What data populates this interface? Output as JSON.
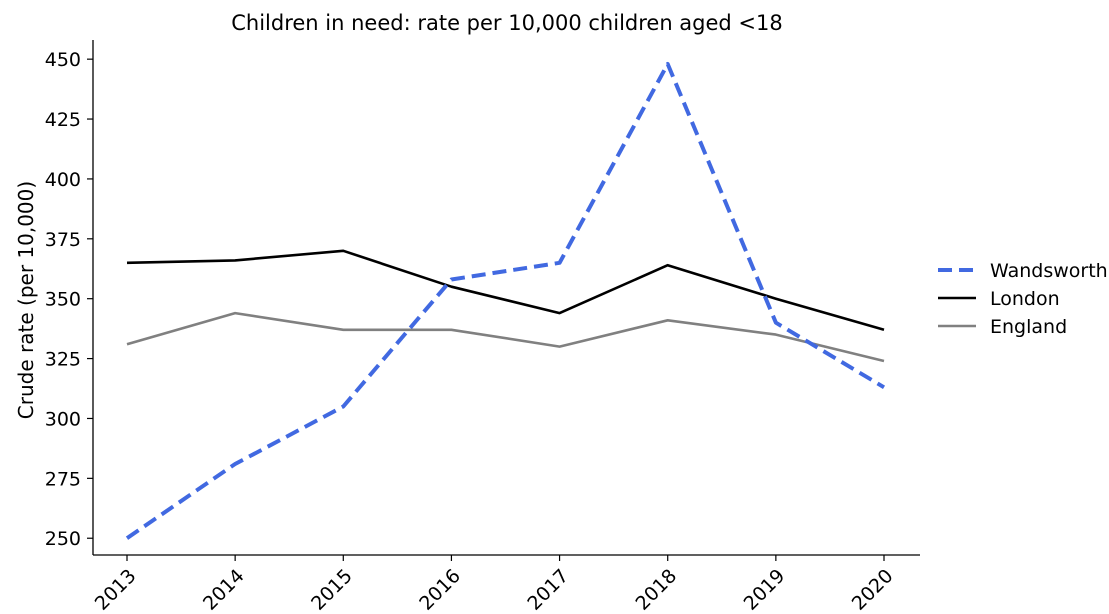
{
  "chart_data": {
    "type": "line",
    "title": "Children in need: rate per 10,000 children aged <18",
    "xlabel": "",
    "ylabel": "Crude rate (per 10,000)",
    "categories": [
      "2013",
      "2014",
      "2015",
      "2016",
      "2017",
      "2018",
      "2019",
      "2020"
    ],
    "yticks": [
      250,
      275,
      300,
      325,
      350,
      375,
      400,
      425,
      450
    ],
    "ylim": [
      243,
      458
    ],
    "grid": false,
    "legend_position": "right",
    "series": [
      {
        "name": "Wandsworth",
        "color": "#4169E1",
        "style": "dashed",
        "values": [
          250,
          281,
          305,
          358,
          365,
          448,
          340,
          313
        ]
      },
      {
        "name": "London",
        "color": "#000000",
        "style": "solid",
        "values": [
          365,
          366,
          370,
          355,
          344,
          364,
          350,
          337
        ]
      },
      {
        "name": "England",
        "color": "#808080",
        "style": "solid",
        "values": [
          331,
          344,
          337,
          337,
          330,
          341,
          335,
          324
        ]
      }
    ]
  }
}
